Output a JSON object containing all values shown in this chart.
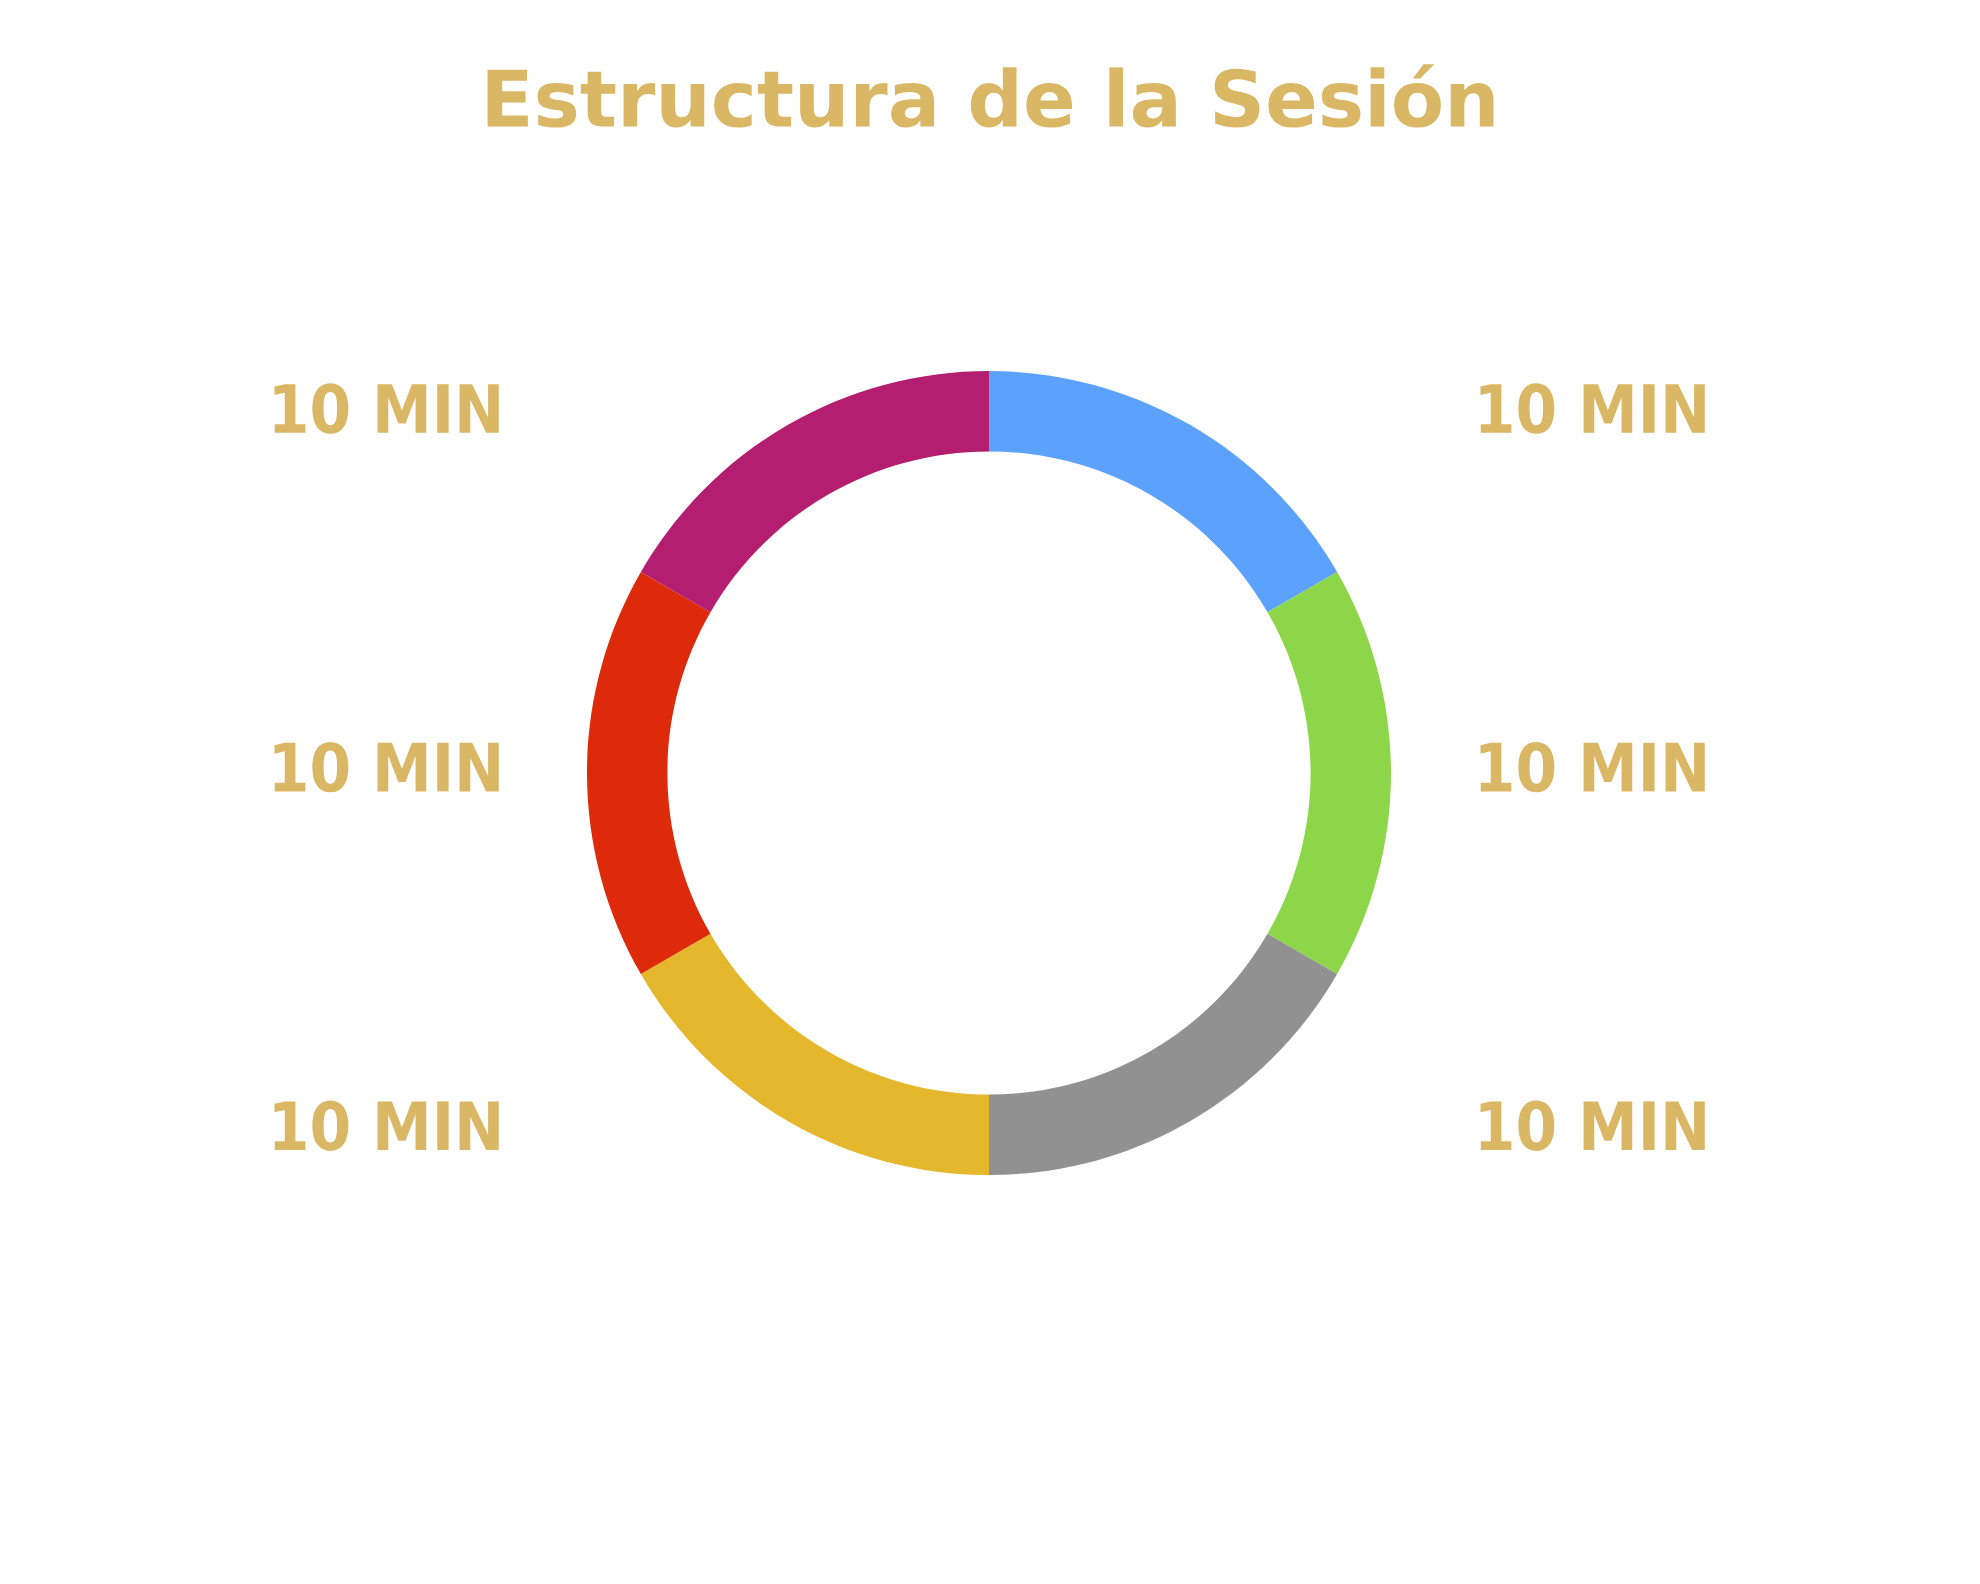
{
  "chart_data": {
    "type": "donut",
    "title": "Estructura de la Sesión",
    "categories": [
      null,
      null,
      null,
      null,
      null,
      null
    ],
    "values": [
      10,
      10,
      10,
      10,
      10,
      10
    ],
    "value_labels": [
      "10 MIN",
      "10 MIN",
      "10 MIN",
      "10 MIN",
      "10 MIN",
      "10 MIN"
    ],
    "colors": [
      "#5ca1fb",
      "#8dd64a",
      "#919191",
      "#e5b72c",
      "#dc2a0b",
      "#b41e71"
    ],
    "legend": false
  }
}
